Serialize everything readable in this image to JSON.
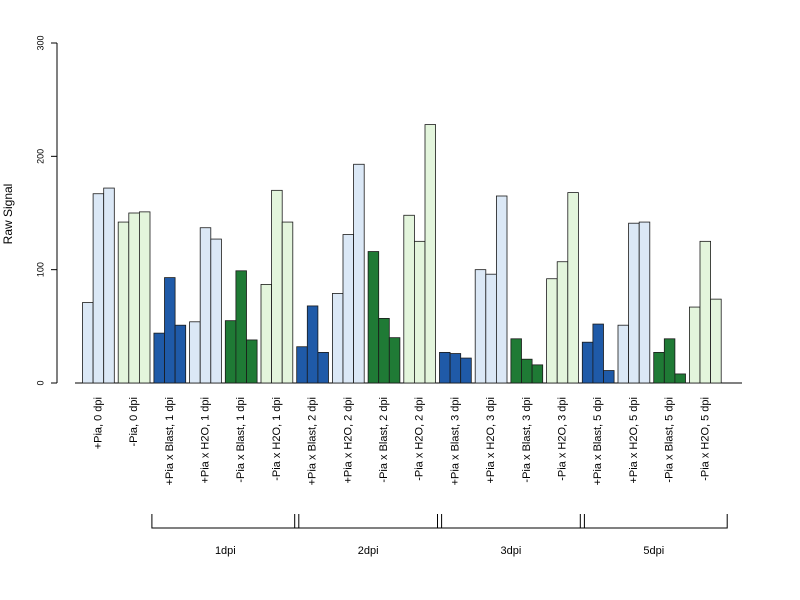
{
  "chart_data": {
    "type": "bar",
    "ylabel": "Raw Signal",
    "ylim": [
      0,
      300
    ],
    "yticks": [
      0,
      100,
      200,
      300
    ],
    "categories": [
      "+Pia, 0 dpi",
      "-Pia, 0 dpi",
      "+Pia x Blast, 1 dpi",
      "+Pia x H2O, 1 dpi",
      "-Pia x Blast, 1 dpi",
      "-Pia x H2O, 1 dpi",
      "+Pia x Blast, 2 dpi",
      "+Pia x H2O, 2 dpi",
      "-Pia x Blast, 2 dpi",
      "-Pia x H2O, 2 dpi",
      "+Pia x Blast, 3 dpi",
      "+Pia x H2O, 3 dpi",
      "-Pia x Blast, 3 dpi",
      "-Pia x H2O, 3 dpi",
      "+Pia x Blast, 5 dpi",
      "+Pia x H2O, 5 dpi",
      "-Pia x Blast, 5 dpi",
      "-Pia x H2O, 5 dpi"
    ],
    "group_colors": [
      "#dbe8f6",
      "#e3f5dc",
      "#1f5aa8",
      "#dbe8f6",
      "#1f7a35",
      "#e3f5dc",
      "#1f5aa8",
      "#dbe8f6",
      "#1f7a35",
      "#e3f5dc",
      "#1f5aa8",
      "#dbe8f6",
      "#1f7a35",
      "#e3f5dc",
      "#1f5aa8",
      "#dbe8f6",
      "#1f7a35",
      "#e3f5dc"
    ],
    "values": [
      [
        71,
        167,
        172
      ],
      [
        142,
        150,
        151
      ],
      [
        44,
        93,
        51
      ],
      [
        54,
        137,
        127
      ],
      [
        55,
        99,
        38
      ],
      [
        87,
        170,
        142
      ],
      [
        32,
        68,
        27
      ],
      [
        79,
        131,
        193
      ],
      [
        116,
        57,
        40
      ],
      [
        148,
        125,
        228
      ],
      [
        27,
        26,
        22
      ],
      [
        100,
        96,
        165
      ],
      [
        39,
        21,
        16
      ],
      [
        92,
        107,
        168
      ],
      [
        36,
        52,
        11
      ],
      [
        51,
        141,
        142
      ],
      [
        27,
        39,
        8
      ],
      [
        67,
        125,
        74
      ]
    ],
    "timepoint_groups": [
      {
        "label": "1dpi",
        "from": 2,
        "to": 5
      },
      {
        "label": "2dpi",
        "from": 6,
        "to": 9
      },
      {
        "label": "3dpi",
        "from": 10,
        "to": 13
      },
      {
        "label": "5dpi",
        "from": 14,
        "to": 17
      }
    ],
    "grid": false,
    "legend": "none"
  }
}
